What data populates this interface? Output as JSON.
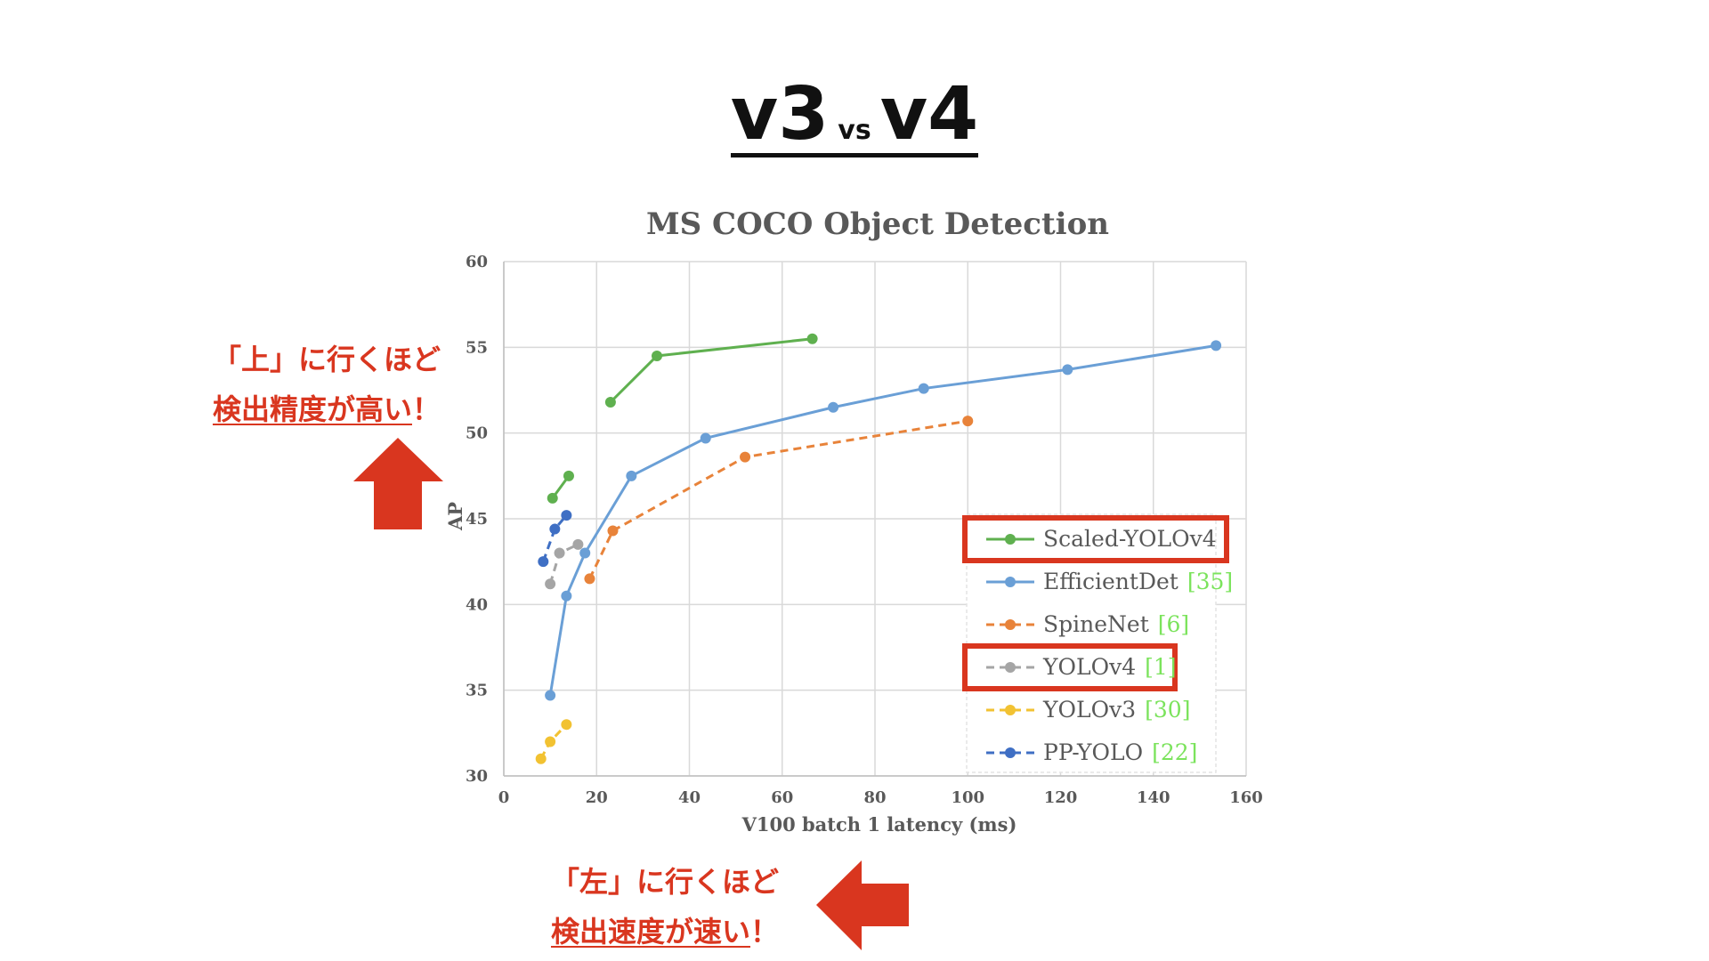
{
  "slide": {
    "title_left": "v3",
    "title_mid": "vs",
    "title_right": "v4",
    "note_up_line1": "「上」に行くほど",
    "note_up_line2": "検出精度が高い",
    "note_up_mark": "！",
    "note_left_line1": "「左」に行くほど",
    "note_left_line2": "検出速度が速い",
    "note_left_mark": "！",
    "arrow_color": "#d9361f",
    "highlight_color": "#d9361f"
  },
  "chart_data": {
    "type": "line",
    "title": "MS COCO Object Detection",
    "xlabel": "V100 batch 1 latency (ms)",
    "ylabel": "AP",
    "xlim": [
      0,
      160
    ],
    "ylim": [
      30,
      60
    ],
    "xticks": [
      0,
      20,
      40,
      60,
      80,
      100,
      120,
      140,
      160
    ],
    "yticks": [
      30,
      35,
      40,
      45,
      50,
      55,
      60
    ],
    "grid": true,
    "legend_position": "bottom-right",
    "series": [
      {
        "name": "Scaled-YOLOv4",
        "ref": "",
        "color": "#5fb04f",
        "dashed": false,
        "highlighted": true,
        "groups": [
          [
            [
              10.5,
              46.2
            ],
            [
              14,
              47.5
            ]
          ],
          [
            [
              23,
              51.8
            ],
            [
              33,
              54.5
            ],
            [
              66.5,
              55.5
            ]
          ]
        ]
      },
      {
        "name": "EfficientDet",
        "ref": "[35]",
        "color": "#6a9fd6",
        "dashed": false,
        "highlighted": false,
        "groups": [
          [
            [
              10,
              34.7
            ],
            [
              13.5,
              40.5
            ],
            [
              17.5,
              43
            ],
            [
              27.5,
              47.5
            ],
            [
              43.5,
              49.7
            ],
            [
              71,
              51.5
            ],
            [
              90.5,
              52.6
            ],
            [
              121.5,
              53.7
            ],
            [
              153.5,
              55.1
            ]
          ]
        ]
      },
      {
        "name": "SpineNet",
        "ref": "[6]",
        "color": "#e8833a",
        "dashed": true,
        "highlighted": false,
        "groups": [
          [
            [
              18.5,
              41.5
            ],
            [
              23.5,
              44.3
            ],
            [
              52,
              48.6
            ],
            [
              100,
              50.7
            ]
          ]
        ]
      },
      {
        "name": "YOLOv4",
        "ref": "[1]",
        "color": "#a5a5a5",
        "dashed": true,
        "highlighted": true,
        "groups": [
          [
            [
              10,
              41.2
            ],
            [
              12,
              43
            ],
            [
              16,
              43.5
            ]
          ]
        ]
      },
      {
        "name": "YOLOv3",
        "ref": "[30]",
        "color": "#f2c232",
        "dashed": true,
        "highlighted": false,
        "groups": [
          [
            [
              8,
              31
            ],
            [
              10,
              32
            ],
            [
              13.5,
              33
            ]
          ]
        ]
      },
      {
        "name": "PP-YOLO",
        "ref": "[22]",
        "color": "#3f6fc4",
        "dashed": true,
        "highlighted": false,
        "groups": [
          [
            [
              8.5,
              42.5
            ],
            [
              11,
              44.4
            ],
            [
              13.5,
              45.2
            ]
          ]
        ]
      }
    ]
  }
}
